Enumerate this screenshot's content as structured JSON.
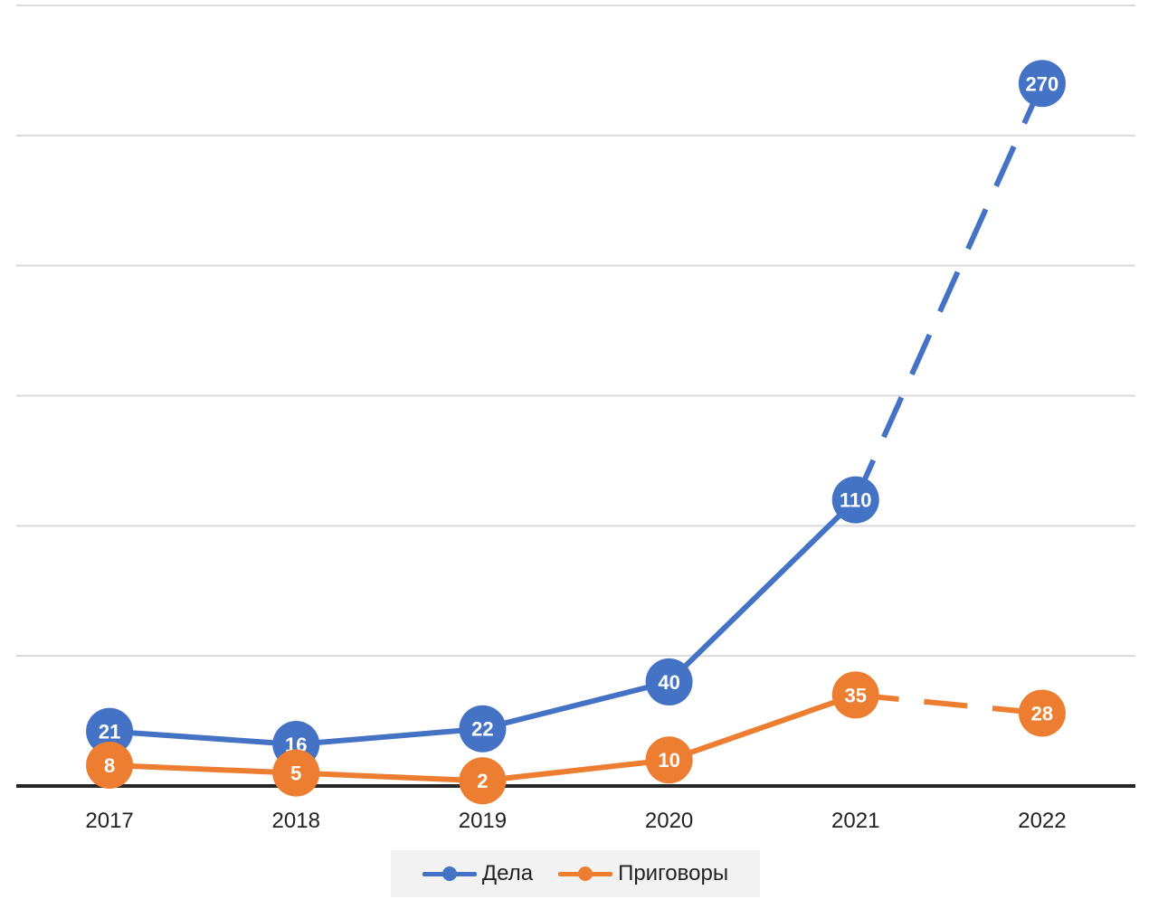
{
  "chart_data": {
    "type": "line",
    "categories": [
      "2017",
      "2018",
      "2019",
      "2020",
      "2021",
      "2022"
    ],
    "ylim": [
      0,
      300
    ],
    "grid": true,
    "legend_position": "bottom",
    "series": [
      {
        "name": "Дела",
        "color": "#4472c4",
        "values": [
          21,
          16,
          22,
          40,
          110,
          270
        ],
        "labels": [
          "21",
          "16",
          "22",
          "40",
          "110",
          "270"
        ],
        "dashed_last_segment": true
      },
      {
        "name": "Приговоры",
        "color": "#ed7d31",
        "values": [
          8,
          5,
          2,
          10,
          35,
          28
        ],
        "labels": [
          "8",
          "5",
          "2",
          "10",
          "35",
          "28"
        ],
        "dashed_last_segment": true
      }
    ]
  }
}
